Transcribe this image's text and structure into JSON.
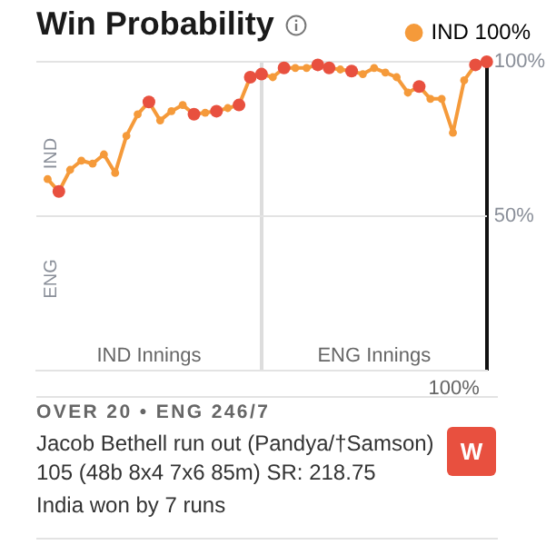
{
  "chart_data": {
    "type": "line",
    "title": "Win Probability",
    "ylim": [
      0,
      100
    ],
    "yticks": [
      {
        "value": 100,
        "label": "100%"
      },
      {
        "value": 50,
        "label": "50%"
      }
    ],
    "grid": "y",
    "legend": "top right",
    "tick_labels": "y",
    "marker": "circle",
    "categories": [
      null,
      null,
      null,
      null,
      null,
      null,
      null,
      null,
      null,
      null,
      null,
      null,
      null,
      null,
      null,
      null,
      null,
      null,
      null,
      null,
      null,
      null,
      null,
      null,
      null,
      null,
      null,
      null,
      null,
      null,
      null,
      null,
      null,
      null,
      null,
      null,
      null,
      null,
      null,
      null,
      null
    ],
    "series": [
      {
        "name": "IND 100%",
        "color": "#f59a3a",
        "values": [
          null,
          62,
          58,
          65,
          68,
          67,
          70,
          64,
          76,
          83,
          87,
          81,
          84,
          86,
          83,
          83.5,
          84,
          85,
          86,
          95,
          96,
          95,
          98,
          98,
          98,
          99,
          98,
          97.5,
          97,
          96,
          98,
          96.5,
          95,
          90,
          92,
          88,
          88,
          77,
          94,
          99,
          100
        ],
        "colors": [
          "#f59a3a",
          "#f59a3a",
          "#e8503f",
          "#f59a3a",
          "#f59a3a",
          "#f59a3a",
          "#f59a3a",
          "#f59a3a",
          "#f59a3a",
          "#f59a3a",
          "#e8503f",
          "#f59a3a",
          "#f59a3a",
          "#f59a3a",
          "#e8503f",
          "#f59a3a",
          "#e8503f",
          "#f59a3a",
          "#e8503f",
          "#e8503f",
          "#e8503f",
          "#f59a3a",
          "#e8503f",
          "#f59a3a",
          "#f59a3a",
          "#e8503f",
          "#e8503f",
          "#f59a3a",
          "#e8503f",
          "#f59a3a",
          "#f59a3a",
          "#f59a3a",
          "#f59a3a",
          "#f59a3a",
          "#e8503f",
          "#f59a3a",
          "#f59a3a",
          "#f59a3a",
          "#f59a3a",
          "#e8503f",
          "#e8503f"
        ]
      }
    ],
    "annotations": [
      "IND",
      "ENG",
      "IND Innings",
      "ENG Innings",
      "OVER 20 • ENG 246/7",
      "Jacob Bethell run out (Pandya/†Samson) 105 (48b 8x4 7x6 85m) SR: 218.75",
      "W",
      "India won by 7 runs",
      "100%"
    ]
  }
}
